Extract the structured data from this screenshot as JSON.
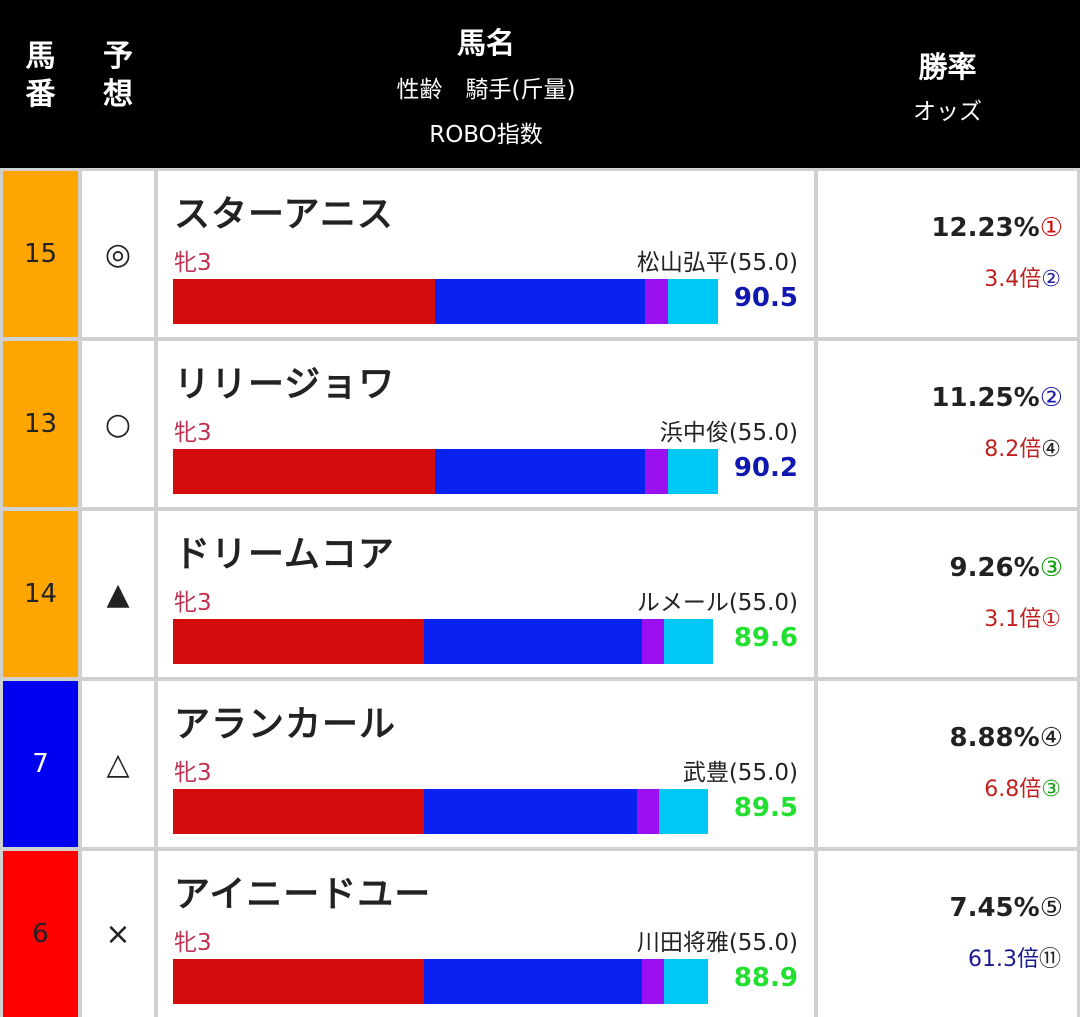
{
  "header": {
    "num": [
      "馬",
      "番"
    ],
    "yoso": [
      "予",
      "想"
    ],
    "name_title": "馬名",
    "name_sub1": "性齢　騎手(斤量)",
    "name_sub2": "ROBO指数",
    "rate_title": "勝率",
    "rate_sub": "オッズ"
  },
  "colors": {
    "bar_red": "#d40c0c",
    "bar_blue": "#0a22f0",
    "bar_purple": "#9a10f0",
    "bar_cyan": "#00c8f4",
    "robo_blue": "#1018b0",
    "robo_green": "#22e030"
  },
  "horses": [
    {
      "num": "15",
      "num_bg": "#ffa500",
      "num_color": "#222222",
      "mark": "◎",
      "name": "スターアニス",
      "sexage": "牝3",
      "jockey": "松山弘平(55.0)",
      "robo": "90.5",
      "robo_color": "#1018b0",
      "segments": [
        0.48,
        0.385,
        0.043,
        0.092
      ],
      "win_rate": "12.23%",
      "rate_rank": "①",
      "rate_rank_color": "#d01010",
      "odds": "3.4倍",
      "odds_color": "#c02020",
      "odds_rank": "②",
      "odds_rank_color": "#2020a0"
    },
    {
      "num": "13",
      "num_bg": "#ffa500",
      "num_color": "#222222",
      "mark": "○",
      "name": "リリージョワ",
      "sexage": "牝3",
      "jockey": "浜中俊(55.0)",
      "robo": "90.2",
      "robo_color": "#1018b0",
      "segments": [
        0.48,
        0.385,
        0.043,
        0.092
      ],
      "win_rate": "11.25%",
      "rate_rank": "②",
      "rate_rank_color": "#1a1ab0",
      "odds": "8.2倍",
      "odds_color": "#c02020",
      "odds_rank": "④",
      "odds_rank_color": "#222222"
    },
    {
      "num": "14",
      "num_bg": "#ffa500",
      "num_color": "#222222",
      "mark": "▲",
      "name": "ドリームコア",
      "sexage": "牝3",
      "jockey": "ルメール(55.0)",
      "robo": "89.6",
      "robo_color": "#22e030",
      "segments": [
        0.46,
        0.4,
        0.04,
        0.09
      ],
      "win_rate": "9.26%",
      "rate_rank": "③",
      "rate_rank_color": "#10a010",
      "odds": "3.1倍",
      "odds_color": "#c02020",
      "odds_rank": "①",
      "odds_rank_color": "#c02020"
    },
    {
      "num": "7",
      "num_bg": "#0000f0",
      "num_color": "#ffffff",
      "mark": "△",
      "name": "アランカール",
      "sexage": "牝3",
      "jockey": "武豊(55.0)",
      "robo": "89.5",
      "robo_color": "#22e030",
      "segments": [
        0.46,
        0.39,
        0.04,
        0.09
      ],
      "win_rate": "8.88%",
      "rate_rank": "④",
      "rate_rank_color": "#222222",
      "odds": "6.8倍",
      "odds_color": "#c02020",
      "odds_rank": "③",
      "odds_rank_color": "#10a010"
    },
    {
      "num": "6",
      "num_bg": "#ff0000",
      "num_color": "#222222",
      "mark": "×",
      "name": "アイニードユー",
      "sexage": "牝3",
      "jockey": "川田将雅(55.0)",
      "robo": "88.9",
      "robo_color": "#22e030",
      "segments": [
        0.46,
        0.4,
        0.04,
        0.08
      ],
      "win_rate": "7.45%",
      "rate_rank": "⑤",
      "rate_rank_color": "#222222",
      "odds": "61.3倍",
      "odds_color": "#1a1a90",
      "odds_rank": "⑪",
      "odds_rank_color": "#222222"
    }
  ]
}
